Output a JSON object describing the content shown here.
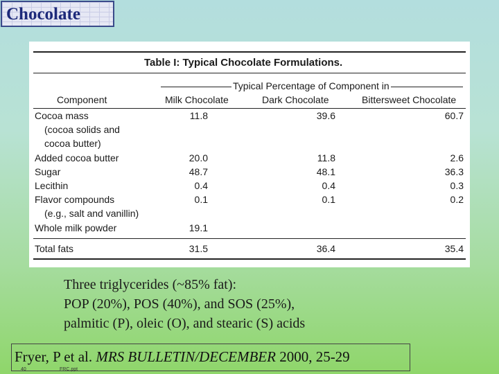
{
  "slide_title": "Chocolate",
  "table": {
    "title": "Table I: Typical Chocolate Formulations.",
    "group_header": "Typical Percentage of Component in",
    "columns": [
      "Component",
      "Milk Chocolate",
      "Dark Chocolate",
      "Bittersweet Chocolate"
    ],
    "rows": [
      {
        "component": "Cocoa mass",
        "milk": "11.8",
        "dark": "39.6",
        "bittersweet": "60.7"
      },
      {
        "component": "(cocoa solids and",
        "milk": "",
        "dark": "",
        "bittersweet": ""
      },
      {
        "component": "cocoa butter)",
        "milk": "",
        "dark": "",
        "bittersweet": ""
      },
      {
        "component": "Added cocoa butter",
        "milk": "20.0",
        "dark": "11.8",
        "bittersweet": "2.6"
      },
      {
        "component": "Sugar",
        "milk": "48.7",
        "dark": "48.1",
        "bittersweet": "36.3"
      },
      {
        "component": "Lecithin",
        "milk": "0.4",
        "dark": "0.4",
        "bittersweet": "0.3"
      },
      {
        "component": "Flavor compounds",
        "milk": "0.1",
        "dark": "0.1",
        "bittersweet": "0.2"
      },
      {
        "component": "(e.g., salt and vanillin)",
        "milk": "",
        "dark": "",
        "bittersweet": ""
      },
      {
        "component": "Whole milk powder",
        "milk": "19.1",
        "dark": "",
        "bittersweet": ""
      }
    ],
    "total": {
      "component": "Total fats",
      "milk": "31.5",
      "dark": "36.4",
      "bittersweet": "35.4"
    }
  },
  "caption": {
    "line1": "Three triglycerides (~85% fat):",
    "line2": "POP (20%), POS (40%), and SOS (25%),",
    "line3": "palmitic (P), oleic (O), and stearic (S) acids"
  },
  "citation": {
    "authors": "Fryer, P et al. ",
    "journal": "MRS BULLETIN/DECEMBER",
    "rest": " 2000, 25-29"
  },
  "footer": {
    "slide_number": "40",
    "file_name": "FRC.ppt"
  }
}
